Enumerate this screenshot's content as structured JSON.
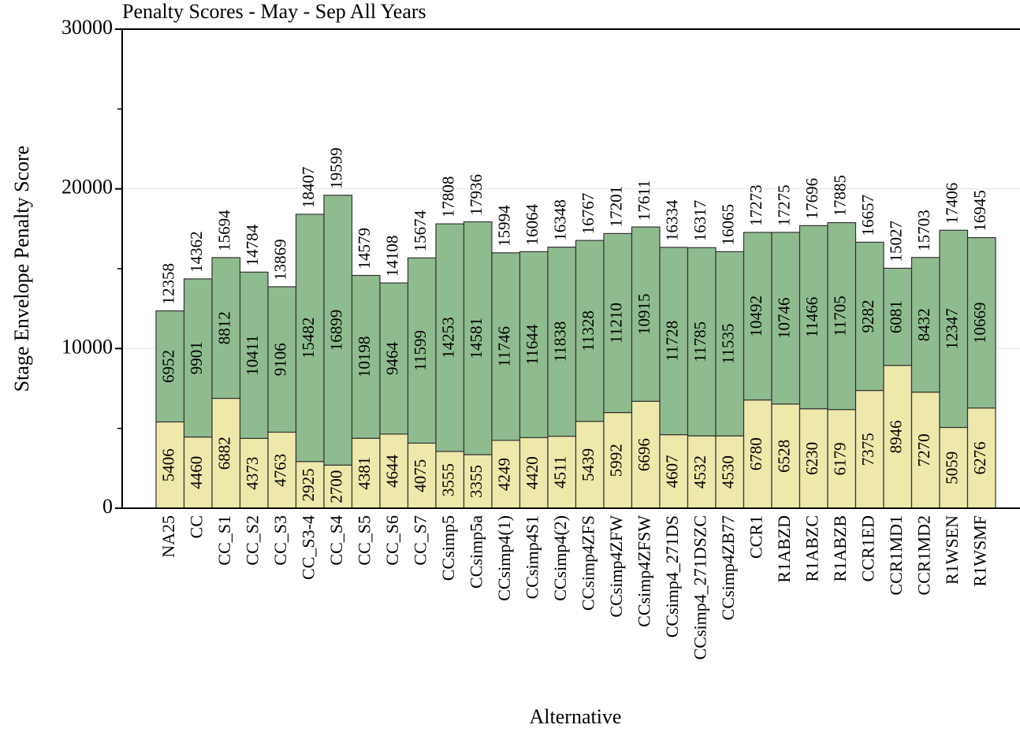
{
  "chart_data": {
    "type": "stacked_bar",
    "title": "Penalty Scores - May - Sep All Years",
    "x_label": "Alternative",
    "y_label": "Stage Envelope Penalty Score",
    "categories": [
      "NA25",
      "CC",
      "CC_S1",
      "CC_S2",
      "CC_S3",
      "CC_S3-4",
      "CC_S4",
      "CC_S5",
      "CC_S6",
      "CC_S7",
      "CCsimp5",
      "CCsimp5a",
      "CCsimp4(1)",
      "CCsimp4S1",
      "CCsimp4(2)",
      "CCsimp4ZFS",
      "CCsimp4ZFW",
      "CCsimp4ZFSW",
      "CCsimp4_271DS",
      "CCsimp4_271DSZC",
      "CCsimp4ZB77",
      "CCR1",
      "R1ABZD",
      "R1ABZC",
      "R1ABZB",
      "CCR1ED",
      "CCR1MD1",
      "CCR1MD2",
      "R1WSEN",
      "R1WSMF"
    ],
    "series": [
      {
        "color": "#eee8aa",
        "values": [
          5406,
          4460,
          6882,
          4373,
          4763,
          2925,
          2700,
          4381,
          4644,
          4075,
          3555,
          3355,
          4249,
          4420,
          4511,
          5439,
          5992,
          6696,
          4607,
          4532,
          4530,
          6780,
          6528,
          6230,
          6179,
          7375,
          8946,
          7270,
          5059,
          6276
        ]
      },
      {
        "color": "#8fbc8f",
        "values": [
          6952,
          9901,
          8812,
          10411,
          9106,
          15482,
          16899,
          10198,
          9464,
          11599,
          14253,
          14581,
          11746,
          11644,
          11838,
          11328,
          11210,
          10915,
          11728,
          11785,
          11535,
          10492,
          10746,
          11466,
          11705,
          9282,
          6081,
          8432,
          12347,
          10669
        ]
      }
    ],
    "totals": [
      12358,
      14362,
      15694,
      14784,
      13869,
      18407,
      19599,
      14579,
      14108,
      15674,
      17808,
      17936,
      15994,
      16064,
      16348,
      16767,
      17201,
      17611,
      16334,
      16317,
      16065,
      17273,
      17275,
      17696,
      17885,
      16657,
      15027,
      15703,
      17406,
      16945
    ],
    "ylim": [
      0,
      30000
    ],
    "yticks": [
      0,
      10000,
      20000,
      30000
    ],
    "yminorticks": [
      5000,
      15000,
      25000
    ],
    "grid": true
  }
}
